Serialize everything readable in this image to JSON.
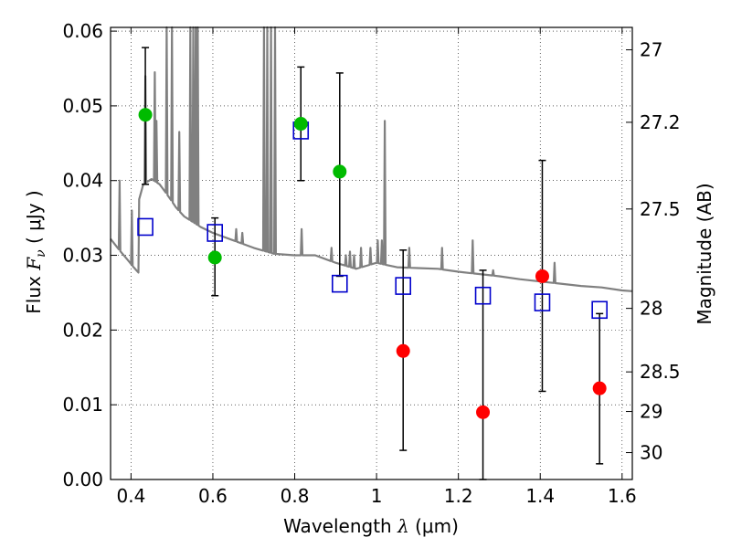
{
  "chart_data": {
    "type": "scatter",
    "xlabel_text": "Wavelength",
    "xlabel_symbol": "λ",
    "xlabel_unit": "(μm)",
    "ylabel_text": "Flux",
    "ylabel_symbol": "F",
    "ylabel_sub": "ν",
    "ylabel_unit": "( μJy )",
    "y2label": "Magnitude (AB)",
    "xlim": [
      0.35,
      1.625
    ],
    "ylim": [
      0.0,
      0.0605
    ],
    "x_ticks": [
      0.4,
      0.6,
      0.8,
      1.0,
      1.2,
      1.4,
      1.6
    ],
    "x_tick_labels": [
      "0.4",
      "0.6",
      "0.8",
      "1",
      "1.2",
      "1.4",
      "1.6"
    ],
    "y_ticks": [
      0.0,
      0.01,
      0.02,
      0.03,
      0.04,
      0.05,
      0.06
    ],
    "y_tick_labels": [
      "0.00",
      "0.01",
      "0.02",
      "0.03",
      "0.04",
      "0.05",
      "0.06"
    ],
    "mag_ticks": [
      {
        "label": "27",
        "flux": 0.0575
      },
      {
        "label": "27.2",
        "flux": 0.0478
      },
      {
        "label": "27.5",
        "flux": 0.0362
      },
      {
        "label": "28",
        "flux": 0.0229
      },
      {
        "label": "28.5",
        "flux": 0.0144
      },
      {
        "label": "29",
        "flux": 0.0091
      },
      {
        "label": "30",
        "flux": 0.0036
      }
    ],
    "grid": true,
    "colors": {
      "green": "#00bb00",
      "red": "#ff0000",
      "model_box": "#0000cc",
      "spectrum": "#808080",
      "errorbar": "#000000"
    },
    "detections": [
      {
        "x": 0.435,
        "y": 0.0488,
        "err_lo": 0.0093,
        "err_hi": 0.009
      },
      {
        "x": 0.605,
        "y": 0.0297,
        "err_lo": 0.0051,
        "err_hi": 0.0053
      },
      {
        "x": 0.815,
        "y": 0.0476,
        "err_lo": 0.0076,
        "err_hi": 0.0076
      },
      {
        "x": 0.91,
        "y": 0.0412,
        "err_lo": 0.014,
        "err_hi": 0.0132
      }
    ],
    "upper_limits": [
      {
        "x": 1.065,
        "y": 0.0172,
        "err_lo": 0.0133,
        "err_hi": 0.0135
      },
      {
        "x": 1.26,
        "y": 0.009,
        "err_lo": 0.009,
        "err_hi": 0.019
      },
      {
        "x": 1.405,
        "y": 0.0272,
        "err_lo": 0.0154,
        "err_hi": 0.0155
      },
      {
        "x": 1.545,
        "y": 0.0122,
        "err_lo": 0.0101,
        "err_hi": 0.01
      }
    ],
    "model_points": [
      {
        "x": 0.435,
        "y": 0.0338
      },
      {
        "x": 0.605,
        "y": 0.033
      },
      {
        "x": 0.815,
        "y": 0.0467
      },
      {
        "x": 0.91,
        "y": 0.0262
      },
      {
        "x": 1.065,
        "y": 0.0259
      },
      {
        "x": 1.26,
        "y": 0.0246
      },
      {
        "x": 1.405,
        "y": 0.0237
      },
      {
        "x": 1.545,
        "y": 0.0227
      }
    ],
    "spectrum_continuum": [
      [
        0.35,
        0.0322
      ],
      [
        0.37,
        0.0308
      ],
      [
        0.39,
        0.0295
      ],
      [
        0.405,
        0.0285
      ],
      [
        0.413,
        0.028
      ],
      [
        0.418,
        0.0277
      ],
      [
        0.42,
        0.0375
      ],
      [
        0.43,
        0.0395
      ],
      [
        0.45,
        0.0402
      ],
      [
        0.47,
        0.0395
      ],
      [
        0.49,
        0.038
      ],
      [
        0.51,
        0.0364
      ],
      [
        0.53,
        0.0352
      ],
      [
        0.55,
        0.0345
      ],
      [
        0.57,
        0.0338
      ],
      [
        0.6,
        0.033
      ],
      [
        0.65,
        0.032
      ],
      [
        0.7,
        0.031
      ],
      [
        0.75,
        0.0302
      ],
      [
        0.8,
        0.03
      ],
      [
        0.85,
        0.03
      ],
      [
        0.9,
        0.029
      ],
      [
        0.95,
        0.0282
      ],
      [
        1.0,
        0.029
      ],
      [
        1.05,
        0.0284
      ],
      [
        1.1,
        0.0283
      ],
      [
        1.15,
        0.0282
      ],
      [
        1.2,
        0.0278
      ],
      [
        1.25,
        0.0275
      ],
      [
        1.3,
        0.0272
      ],
      [
        1.35,
        0.0268
      ],
      [
        1.4,
        0.0265
      ],
      [
        1.45,
        0.0262
      ],
      [
        1.5,
        0.0259
      ],
      [
        1.55,
        0.0257
      ],
      [
        1.6,
        0.0253
      ],
      [
        1.625,
        0.0252
      ]
    ],
    "spectrum_lines": [
      {
        "x": 0.372,
        "peak": 0.04
      },
      {
        "x": 0.402,
        "peak": 0.036
      },
      {
        "x": 0.435,
        "peak": 0.054
      },
      {
        "x": 0.458,
        "peak": 0.0545
      },
      {
        "x": 0.462,
        "peak": 0.048
      },
      {
        "x": 0.487,
        "peak": 0.064
      },
      {
        "x": 0.5,
        "peak": 0.065
      },
      {
        "x": 0.518,
        "peak": 0.0465
      },
      {
        "x": 0.545,
        "peak": 0.0605
      },
      {
        "x": 0.552,
        "peak": 0.0605
      },
      {
        "x": 0.558,
        "peak": 0.0605
      },
      {
        "x": 0.563,
        "peak": 0.0605
      },
      {
        "x": 0.657,
        "peak": 0.0335
      },
      {
        "x": 0.672,
        "peak": 0.033
      },
      {
        "x": 0.725,
        "peak": 0.0605
      },
      {
        "x": 0.733,
        "peak": 0.0605
      },
      {
        "x": 0.742,
        "peak": 0.0605
      },
      {
        "x": 0.752,
        "peak": 0.0605
      },
      {
        "x": 0.817,
        "peak": 0.0335
      },
      {
        "x": 0.89,
        "peak": 0.031
      },
      {
        "x": 0.925,
        "peak": 0.03
      },
      {
        "x": 0.935,
        "peak": 0.0305
      },
      {
        "x": 0.945,
        "peak": 0.03
      },
      {
        "x": 0.962,
        "peak": 0.031
      },
      {
        "x": 0.985,
        "peak": 0.031
      },
      {
        "x": 1.003,
        "peak": 0.032
      },
      {
        "x": 1.013,
        "peak": 0.032
      },
      {
        "x": 1.02,
        "peak": 0.048
      },
      {
        "x": 1.08,
        "peak": 0.031
      },
      {
        "x": 1.16,
        "peak": 0.031
      },
      {
        "x": 1.235,
        "peak": 0.032
      },
      {
        "x": 1.285,
        "peak": 0.028
      },
      {
        "x": 1.435,
        "peak": 0.029
      }
    ]
  }
}
